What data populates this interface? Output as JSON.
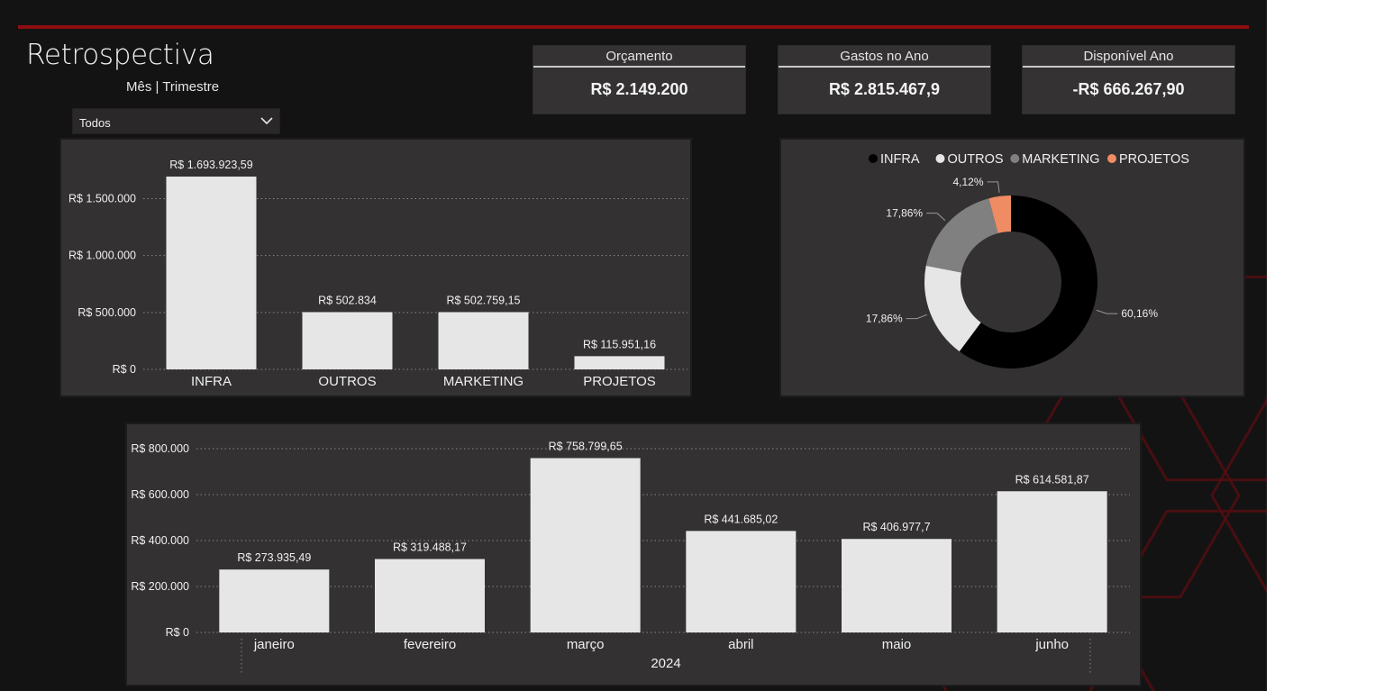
{
  "header": {
    "title": "Retrospectiva",
    "subtitle": "Mês | Trimestre"
  },
  "filter": {
    "value": "Todos",
    "icon": "chevron-down-icon"
  },
  "kpis": [
    {
      "label": "Orçamento",
      "value": "R$ 2.149.200"
    },
    {
      "label": "Gastos no Ano",
      "value": "R$ 2.815.467,9"
    },
    {
      "label": "Disponível Ano",
      "value": "-R$ 666.267,90"
    }
  ],
  "colors": {
    "background": "#141314",
    "panel": "#333132",
    "accent_red": "#8e0d10",
    "bar": "#e6e6e6",
    "infra": "#000000",
    "outros": "#e6e6e6",
    "marketing": "#808080",
    "projetos": "#f08c64"
  },
  "chart_data": [
    {
      "type": "bar",
      "categories": [
        "INFRA",
        "OUTROS",
        "MARKETING",
        "PROJETOS"
      ],
      "values": [
        1693923.59,
        502834,
        502759.15,
        115951.16
      ],
      "data_labels": [
        "R$ 1.693.923,59",
        "R$ 502.834",
        "R$ 502.759,15",
        "R$ 115.951,16"
      ],
      "yticks": [
        0,
        500000,
        1000000,
        1500000
      ],
      "ytick_labels": [
        "R$ 0",
        "R$ 500.000",
        "R$ 1.000.000",
        "R$ 1.500.000"
      ],
      "ylim": [
        0,
        1693923.59
      ],
      "grid": true
    },
    {
      "type": "pie",
      "style": "donut",
      "legend_position": "top",
      "categories": [
        "INFRA",
        "OUTROS",
        "MARKETING",
        "PROJETOS"
      ],
      "values": [
        60.16,
        17.86,
        17.86,
        4.12
      ],
      "data_labels": [
        "60,16%",
        "17,86%",
        "17,86%",
        "4,12%"
      ],
      "colors": [
        "#000000",
        "#e6e6e6",
        "#808080",
        "#f08c64"
      ]
    },
    {
      "type": "bar",
      "categories": [
        "janeiro",
        "fevereiro",
        "março",
        "abril",
        "maio",
        "junho"
      ],
      "values": [
        273935.49,
        319488.17,
        758799.65,
        441685.02,
        406977.7,
        614581.87
      ],
      "data_labels": [
        "R$ 273.935,49",
        "R$ 319.488,17",
        "R$ 758.799,65",
        "R$ 441.685,02",
        "R$ 406.977,7",
        "R$ 614.581,87"
      ],
      "xgroup_label": "2024",
      "yticks": [
        0,
        200000,
        400000,
        600000,
        800000
      ],
      "ytick_labels": [
        "R$ 0",
        "R$ 200.000",
        "R$ 400.000",
        "R$ 600.000",
        "R$ 800.000"
      ],
      "ylim": [
        0,
        800000
      ],
      "grid": true
    }
  ]
}
